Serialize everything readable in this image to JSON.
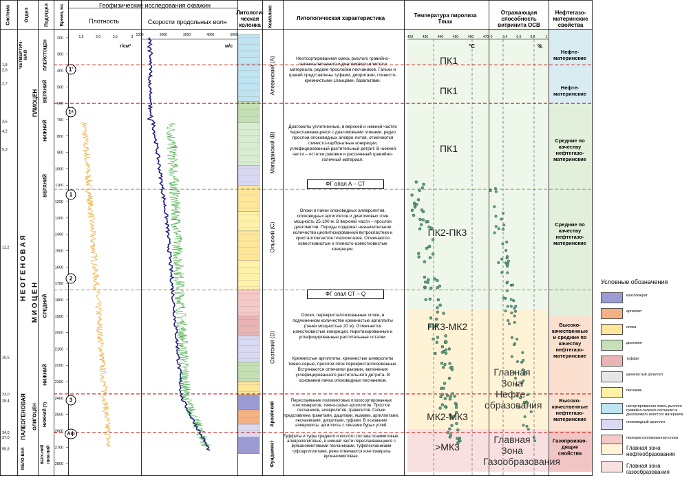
{
  "headers": {
    "system": "Система",
    "section": "Отдел",
    "subsection": "Подотдел",
    "time": "Время, мс",
    "geo": "Геофизические исследования скважин",
    "density": "Плотность",
    "velocity": "Скорости продольных волн",
    "litho": "Литологи-ческая колонка",
    "complex": "Комплекс",
    "lith_char": "Литологическая характеристика",
    "tmax": "Температура пиролиза Tmax",
    "ro": "Отражающая способность витринита ОСВ",
    "oil_props": "Нефтегазо-материнские свойства"
  },
  "units": {
    "density": "г/см³",
    "velocity": "м/с",
    "tmax": "°С",
    "ro": "%"
  },
  "axes": {
    "density_ticks": [
      "1,5",
      "2,0",
      "2,5",
      "3"
    ],
    "velocity_ticks": [
      "1000",
      "2000",
      "3000",
      "4000",
      "5000"
    ],
    "tmax_ticks": [
      "420",
      "430",
      "440",
      "450",
      "460",
      "470"
    ],
    "ro_ticks": [
      "0",
      "0,4",
      "0,6",
      "0,8",
      "1"
    ],
    "time_ticks": [
      "200",
      "300",
      "400",
      "500",
      "600",
      "700",
      "800",
      "900",
      "1000",
      "1100",
      "1200",
      "1300",
      "1400",
      "1500",
      "1600",
      "1700",
      "1800",
      "1900",
      "2000",
      "2100",
      "2200",
      "2300",
      "2400",
      "2500",
      "2600",
      "2700",
      "2800"
    ],
    "ages": [
      {
        "t": 365,
        "label": "1,8"
      },
      {
        "t": 395,
        "label": "2,0"
      },
      {
        "t": 480,
        "label": "2,7"
      },
      {
        "t": 710,
        "label": "3,5"
      },
      {
        "t": 770,
        "label": "4,2"
      },
      {
        "t": 880,
        "label": "5,3"
      },
      {
        "t": 1480,
        "label": "11,2"
      },
      {
        "t": 2150,
        "label": "16,5"
      },
      {
        "t": 2375,
        "label": "23,0"
      },
      {
        "t": 2415,
        "label": "28,4"
      },
      {
        "t": 2610,
        "label": "34,0"
      },
      {
        "t": 2640,
        "label": "37,0"
      },
      {
        "t": 2710,
        "label": "55,8"
      }
    ]
  },
  "stratigraphy": {
    "systems": [
      "ЧЕТВЕРТИЧ-НАЯ",
      "Н  Е  О  Г  Е  Н  О  В  А  Я",
      "ПАЛЕОГЕНОВАЯ",
      "МЕЛО-ВАЯ"
    ],
    "sections": [
      "ПЛИОЦЕН",
      "М  И  О  Ц  Е  Н",
      "ОЛИГОЦЕН"
    ],
    "subsections": [
      "ПЛЕЙСТОЦЕН",
      "ВЕРХНИЙ",
      "НИЖНИЙ",
      "ВЕРХНИЙ",
      "СРЕДНИЙ",
      "НИЖНИЙ",
      "НИЖНИЙ (?)",
      "ВЕРХ-НИЙ",
      "НИЖ-НИЙ"
    ]
  },
  "complexes": [
    "Алевинский (А)",
    "Магаданский (B)",
    "Ольский (C)",
    "Охотский (D)",
    "Архейский",
    "Фундамент"
  ],
  "descriptions": [
    "Неотсортированная смесь рыхлого гравийно-галечно-песчаного и диатомового илистого материала, редкие прослойки песчаников. Гальки и гравий представлены туфами, диоритами, глинисто-кремнистыми сланцами, базальтами.",
    "Диатомиты уплотненные, в верхней и нижней частях переслаивающиеся с диатомовыми глинами, редко прослои опоковидных алевро-литов, отмечаются глинисто-карбонатные конкреции, углефицированный растительный детрит. В нижней части – остатки раковин и рассеянный гравийно-галечный материал.",
    "Опоки и пачки опоковидных алевролитов, опоковидных аргиллитов и диатомовых глин мощность 25-100 м. В верхней части – прослои диатомитов. Породы содержат незначительное количество цеолитизированной витрокластики и кристаллокластов плагиоклазов. Отмечаются известковистые и глинисто-известковистые конкреции.",
    "Опоки, перекристаллизованные опоки, в подчиненном количестве кремнистые аргиллиты (пачки мощностью 20 м). Отмечаются известковистые конкреции, пиритизированные и углефицированные растительные остатки.",
    "Кремнистые аргиллиты, кремнистые алевролиты темно-серые, прослои опок перекристаллизованных. Встречаются отпечатки раковин, включения углефицированного растительного детрита. В основании пачка опоковидных песчаников.",
    "Переслаивание полимиктовых плохосортированных конгломератов, темно-серых аргиллитов. Прослои песчаников, алевролитов, гравелитов. Гальки представлена гранитами, дацитами, яшмами, аргиллитами, песчаниками, диоритами, туфами. В основании алевролиты, аргиллиты с линзами бурых углей.",
    "Туффиты и туфы среднего и кислого состава псаммитовые, алевропелитовые, в нижней части переслаивающиеся с вулканомиктовыми песчаниками, туфопесчаниками туфоаргиллитами, реже отмечаются конгломераты вулканомиктовые."
  ],
  "transitions": {
    "box_a": "ФГ опал А – СТ",
    "box_b": "ФГ опал СТ – Q"
  },
  "horizons": [
    "1'",
    "1ᵃ",
    "1",
    "2",
    "3",
    "Аф"
  ],
  "maturity": [
    "ПК1",
    "ПК1",
    "ПК1",
    "ПК2-ПК3",
    "ПК3-МК2",
    "МК2-МК3",
    ">МК3"
  ],
  "zones": {
    "oil": "Главная Зона Нефте-образования",
    "gas": "Главная Зона Газообразования"
  },
  "properties": [
    "Нефте-материнские",
    "Нефте-материнские",
    "Средние по качеству нефтегазо-материнские",
    "Средние по качеству нефтегазо-материнские",
    "Высоко-качественные и средние по качеству нефтегазо-материнские",
    "Высоко-качественные нефтегазо-материнские",
    "Газопроизво-дящие свойства"
  ],
  "legend": {
    "title": "Условные обозначения",
    "items": [
      {
        "label": "конгломерат",
        "color": "#9b9bd6"
      },
      {
        "label": "аргиллит",
        "color": "#f4b183"
      },
      {
        "label": "опока",
        "color": "#ffe699"
      },
      {
        "label": "диатомит",
        "color": "#c5e0b4"
      },
      {
        "label": "туффит",
        "color": "#e8b4b4"
      },
      {
        "label": "кремнистый аргиллит",
        "color": "#e6e6e6"
      },
      {
        "label": "песчаник",
        "color": "#fff2a8"
      },
      {
        "label": "несортированная смесь рыхлого гравийно-галечно-песчаного и диатомового илистого материала",
        "color": "#bfe4f2"
      },
      {
        "label": "опоковидный аргиллит",
        "color": "#d9d9f3"
      },
      {
        "label": "перекристаллизованная опока",
        "color": "#f6c9c9"
      },
      {
        "label": "Главная зона нефтеобразования",
        "color": "#fff3d6"
      },
      {
        "label": "Главная зона газообразования",
        "color": "#f9e0e0"
      }
    ]
  },
  "colors": {
    "density_curve": "#f0a020",
    "velocity_interval": "#2ca02c",
    "velocity_average": "#202080",
    "boundary": "#c00000",
    "horizon_line": "#7a9e3a",
    "point_fill": "#5aa37a",
    "prop_oil": "#d9ecf2",
    "prop_mid": "#e2efda",
    "prop_high": "#fbe0d0",
    "prop_gas": "#f2c4c4"
  }
}
